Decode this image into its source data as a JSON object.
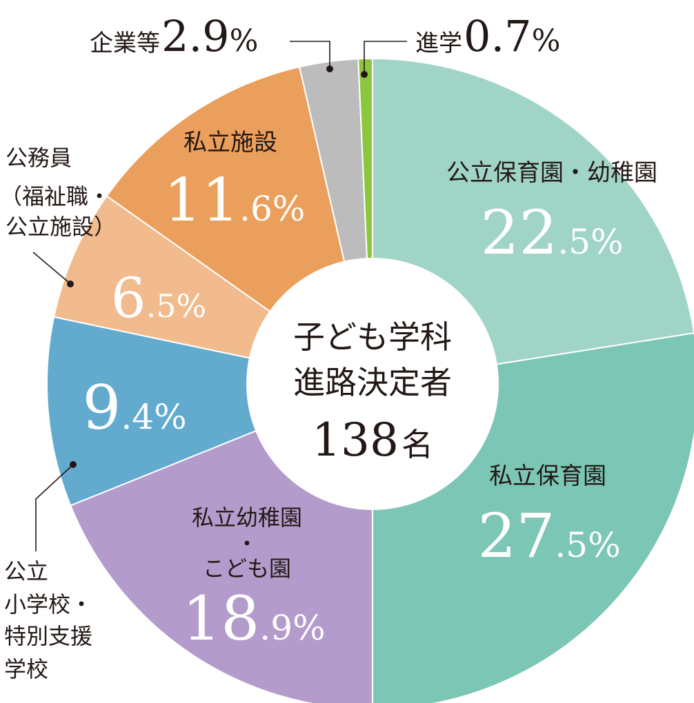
{
  "chart_data": {
    "type": "pie",
    "center": {
      "line1": "子ども学科",
      "line2": "進路決定者",
      "total": "138",
      "unit": "名"
    },
    "slices": [
      {
        "label": "公立保育園・幼稚園",
        "value": 22.5,
        "display": "22.5%",
        "color": "#a0d4c6"
      },
      {
        "label": "私立保育園",
        "value": 27.5,
        "display": "27.5%",
        "color": "#7bc6b5"
      },
      {
        "label": "私立幼稚園・こども園",
        "value": 18.9,
        "display": "18.9%",
        "color": "#b39ccb"
      },
      {
        "label": "公立小学校・特別支援学校",
        "value": 9.4,
        "display": "9.4%",
        "color": "#62abcf"
      },
      {
        "label": "公務員（福祉職・公立施設）",
        "value": 6.5,
        "display": "6.5%",
        "color": "#f1bb8e"
      },
      {
        "label": "私立施設",
        "value": 11.6,
        "display": "11.6%",
        "color": "#eb9f5c"
      },
      {
        "label": "企業等",
        "value": 2.9,
        "display": "2.9%",
        "color": "#bcbcbc"
      },
      {
        "label": "進学",
        "value": 0.7,
        "display": "0.7%",
        "color": "#8cc63f"
      }
    ],
    "outside_labels": {
      "kigyo": {
        "text": "企業等",
        "num": "2.9",
        "pct": "%"
      },
      "shingaku": {
        "text": "進学",
        "num": "0.7",
        "pct": "%"
      },
      "komuin": [
        "公務員",
        "（福祉職・",
        "公立施設）"
      ],
      "koritsu": [
        "公立",
        "小学校・",
        "特別支援",
        "学校"
      ]
    },
    "inside_labels": {
      "k_hoiku": {
        "text": "公立保育園・幼稚園",
        "num": "22",
        "dec": ".5",
        "pct": "%"
      },
      "s_hoiku": {
        "text": "私立保育園",
        "num": "27",
        "dec": ".5",
        "pct": "%"
      },
      "s_yochi": {
        "text1": "私立幼稚園",
        "text2": "・",
        "text3": "こども園",
        "num": "18",
        "dec": ".9",
        "pct": "%"
      },
      "k_sho": {
        "num": "9",
        "dec": ".4",
        "pct": "%"
      },
      "komuin": {
        "num": "6",
        "dec": ".5",
        "pct": "%"
      },
      "s_shisetsu": {
        "text": "私立施設",
        "num": "11",
        "dec": ".6",
        "pct": "%"
      }
    }
  }
}
